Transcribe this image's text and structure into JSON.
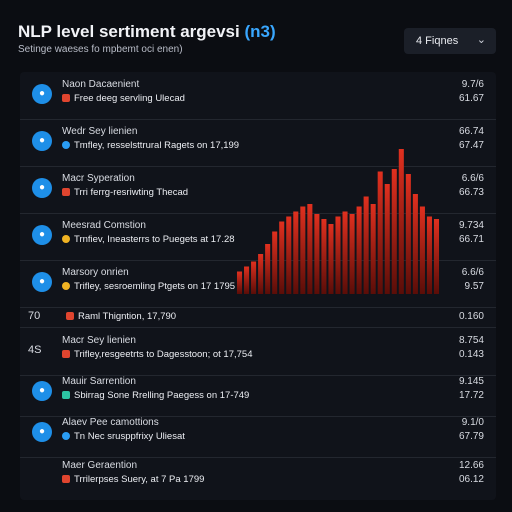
{
  "header": {
    "title_main": "NLP level sertiment argevsi",
    "title_accent": "(n3)",
    "subtitle": "Setinge waeses fo mpbemt oci enen)",
    "dropdown_label": "4 Fiqnes",
    "dropdown_icon": "chevron-down-icon"
  },
  "rows": [
    {
      "lead": "",
      "icon": "a",
      "name": "Naon Dacaenient",
      "detail": "Free deeg servling Ulecad",
      "badge": "red",
      "v1": "9.7/6",
      "v2": "61.67"
    },
    {
      "lead": "",
      "icon": "b",
      "name": "Wedr Sey lienien",
      "detail": "Tmfley, resselsttrural Ragets on 17,199",
      "badge": "blue",
      "v1": "66.74",
      "v2": "67.47"
    },
    {
      "lead": "",
      "icon": "c",
      "name": "Macr Syperation",
      "detail": "Trri ferrg-resriwting Thecad",
      "badge": "red",
      "v1": "6.6/6",
      "v2": "66.73"
    },
    {
      "lead": "",
      "icon": "d",
      "name": "Meesrad Comstion",
      "detail": "Trnfiev, Ineasterrs to Puegets at 17.28",
      "badge": "yellow",
      "v1": "9.734",
      "v2": "66.71"
    },
    {
      "lead": "",
      "icon": "e",
      "name": "Marsory onrien",
      "detail": "Trifley, sesroemling Ptgets on 17 1795",
      "badge": "yellow",
      "v1": "6.6/6",
      "v2": "9.57"
    },
    {
      "lead": "70",
      "icon": "",
      "name": "",
      "detail": "Raml Thigntion, 17,790",
      "badge": "red",
      "v1": "0.160",
      "v2": ""
    },
    {
      "lead": "4S",
      "icon": "",
      "name": "Macr Sey lienien",
      "detail": "Trifley,resgeetrts to Dagesstoon; ot 17,754",
      "badge": "red",
      "v1": "8.754",
      "v2": "0.143"
    },
    {
      "lead": "",
      "icon": "f",
      "name": "Mauir Sarrention",
      "detail": "Sbirrag Sone Rrelling Paegess on 17-749",
      "badge": "green",
      "v1": "9.145",
      "v2": "17.72"
    },
    {
      "lead": "",
      "icon": "g",
      "name": "Alaev Pee camottions",
      "detail": "Tn Nec srusppfrixy Uliesat",
      "badge": "blue",
      "v1": "9.1/0",
      "v2": "67.79"
    },
    {
      "lead": "",
      "icon": "",
      "name": "Maer Geraention",
      "detail": "Trrilerpses Suery, at 7 Pa 1799",
      "badge": "red",
      "v1": "12.66",
      "v2": "06.12"
    }
  ],
  "chart_data": {
    "type": "bar",
    "values": [
      18,
      22,
      26,
      32,
      40,
      50,
      58,
      62,
      66,
      70,
      72,
      64,
      60,
      56,
      62,
      66,
      64,
      70,
      78,
      72,
      98,
      88,
      100,
      116,
      96,
      80,
      70,
      62,
      60
    ],
    "color": "#d8281c",
    "ylim": [
      0,
      120
    ]
  }
}
